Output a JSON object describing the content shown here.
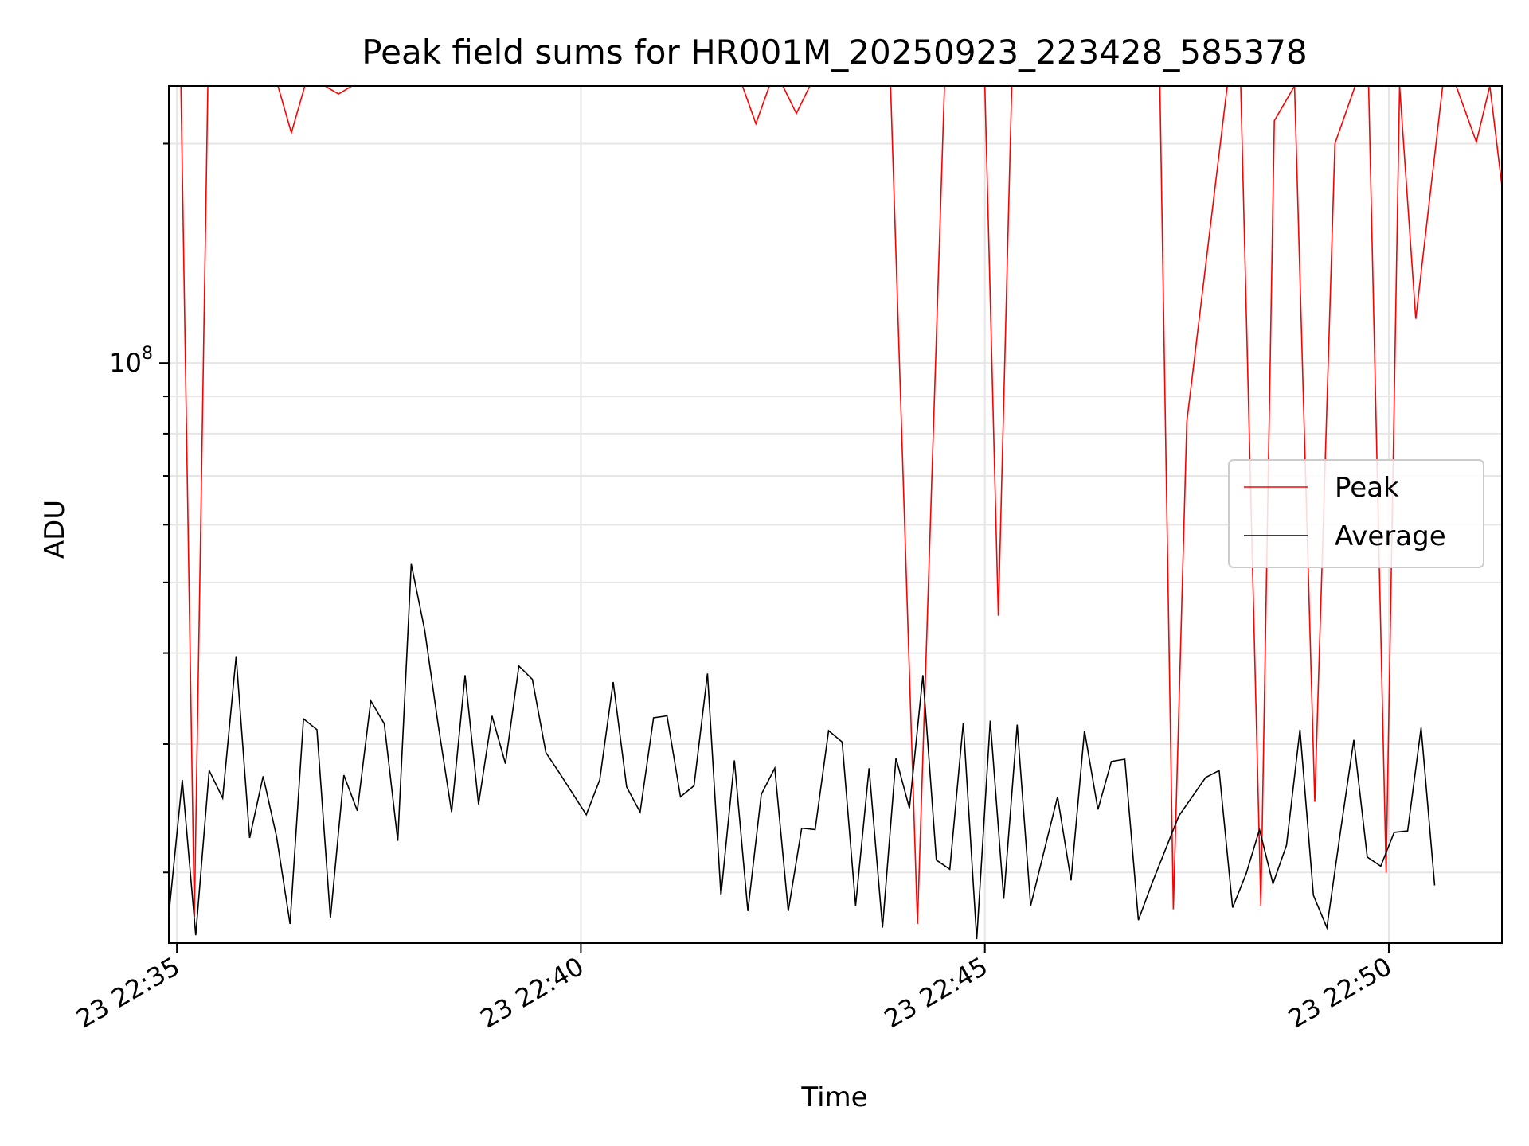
{
  "chart_data": {
    "type": "line",
    "title": "Peak field sums for HR001M_20250923_223428_585378",
    "xlabel": "Time",
    "ylabel": "ADU",
    "y_scale": "log",
    "ylim": [
      16000000,
      240000000
    ],
    "y_tick_labels": [
      {
        "value": 100000000,
        "base": "10",
        "exp": "8"
      }
    ],
    "x_range": [
      "22:34:54",
      "22:51:24"
    ],
    "x_tick_labels": [
      {
        "time": "22:35:00",
        "label": "23 22:35"
      },
      {
        "time": "22:40:00",
        "label": "23 22:40"
      },
      {
        "time": "22:45:00",
        "label": "23 22:45"
      },
      {
        "time": "22:50:00",
        "label": "23 22:50"
      }
    ],
    "grid": true,
    "legend": {
      "position": "center-right",
      "entries": [
        "Peak",
        "Average"
      ]
    },
    "series": [
      {
        "name": "Peak",
        "color": "#ff0000",
        "points": [
          [
            "22:34:54",
            240000000
          ],
          [
            "22:35:03",
            240000000
          ],
          [
            "22:35:13",
            17400000
          ],
          [
            "22:35:23",
            240000000
          ],
          [
            "22:36:15",
            240000000
          ],
          [
            "22:36:25",
            207000000
          ],
          [
            "22:36:35",
            240000000
          ],
          [
            "22:36:50",
            240000000
          ],
          [
            "22:37:00",
            234000000
          ],
          [
            "22:37:10",
            240000000
          ],
          [
            "22:42:00",
            240000000
          ],
          [
            "22:42:10",
            213000000
          ],
          [
            "22:42:20",
            240000000
          ],
          [
            "22:42:30",
            240000000
          ],
          [
            "22:42:40",
            220000000
          ],
          [
            "22:42:50",
            240000000
          ],
          [
            "22:43:50",
            240000000
          ],
          [
            "22:44:10",
            17000000
          ],
          [
            "22:44:30",
            240000000
          ],
          [
            "22:45:00",
            240000000
          ],
          [
            "22:45:10",
            45000000
          ],
          [
            "22:45:20",
            240000000
          ],
          [
            "22:47:10",
            240000000
          ],
          [
            "22:47:20",
            17800000
          ],
          [
            "22:47:30",
            83000000
          ],
          [
            "22:48:00",
            240000000
          ],
          [
            "22:48:10",
            240000000
          ],
          [
            "22:48:25",
            18000000
          ],
          [
            "22:48:35",
            215000000
          ],
          [
            "22:48:50",
            240000000
          ],
          [
            "22:49:05",
            25000000
          ],
          [
            "22:49:20",
            200000000
          ],
          [
            "22:49:35",
            240000000
          ],
          [
            "22:49:45",
            240000000
          ],
          [
            "22:49:58",
            20000000
          ],
          [
            "22:50:08",
            240000000
          ],
          [
            "22:50:20",
            115000000
          ],
          [
            "22:50:40",
            240000000
          ],
          [
            "22:50:50",
            240000000
          ],
          [
            "22:51:05",
            201000000
          ],
          [
            "22:51:15",
            240000000
          ],
          [
            "22:51:24",
            175000000
          ]
        ]
      },
      {
        "name": "Average",
        "color": "#000000",
        "points": [
          [
            "22:34:54",
            17500000
          ],
          [
            "22:35:04",
            26800000
          ],
          [
            "22:35:14",
            16400000
          ],
          [
            "22:35:24",
            27600000
          ],
          [
            "22:35:34",
            25300000
          ],
          [
            "22:35:44",
            39600000
          ],
          [
            "22:35:54",
            22300000
          ],
          [
            "22:36:04",
            27100000
          ],
          [
            "22:36:14",
            22400000
          ],
          [
            "22:36:24",
            17000000
          ],
          [
            "22:36:34",
            32500000
          ],
          [
            "22:36:44",
            31400000
          ],
          [
            "22:36:54",
            17300000
          ],
          [
            "22:37:04",
            27200000
          ],
          [
            "22:37:14",
            24300000
          ],
          [
            "22:37:24",
            34400000
          ],
          [
            "22:37:34",
            32000000
          ],
          [
            "22:37:44",
            22100000
          ],
          [
            "22:37:54",
            53000000
          ],
          [
            "22:38:04",
            43000000
          ],
          [
            "22:38:14",
            31900000
          ],
          [
            "22:38:24",
            24200000
          ],
          [
            "22:38:34",
            37300000
          ],
          [
            "22:38:44",
            24800000
          ],
          [
            "22:38:54",
            32800000
          ],
          [
            "22:39:04",
            28200000
          ],
          [
            "22:39:14",
            38400000
          ],
          [
            "22:39:24",
            36800000
          ],
          [
            "22:39:34",
            29200000
          ],
          [
            "22:39:44",
            27400000
          ],
          [
            "22:40:04",
            24000000
          ],
          [
            "22:40:14",
            26800000
          ],
          [
            "22:40:24",
            36500000
          ],
          [
            "22:40:34",
            26200000
          ],
          [
            "22:40:44",
            24200000
          ],
          [
            "22:40:54",
            32600000
          ],
          [
            "22:41:04",
            32800000
          ],
          [
            "22:41:14",
            25400000
          ],
          [
            "22:41:24",
            26300000
          ],
          [
            "22:41:34",
            37500000
          ],
          [
            "22:41:44",
            18600000
          ],
          [
            "22:41:54",
            28500000
          ],
          [
            "22:42:04",
            17700000
          ],
          [
            "22:42:14",
            25600000
          ],
          [
            "22:42:24",
            27800000
          ],
          [
            "22:42:34",
            17700000
          ],
          [
            "22:42:44",
            23000000
          ],
          [
            "22:42:54",
            22900000
          ],
          [
            "22:43:04",
            31300000
          ],
          [
            "22:43:14",
            30200000
          ],
          [
            "22:43:24",
            18000000
          ],
          [
            "22:43:34",
            27800000
          ],
          [
            "22:43:44",
            16800000
          ],
          [
            "22:43:54",
            28700000
          ],
          [
            "22:44:04",
            24500000
          ],
          [
            "22:44:14",
            37300000
          ],
          [
            "22:44:24",
            20800000
          ],
          [
            "22:44:34",
            20200000
          ],
          [
            "22:44:44",
            32100000
          ],
          [
            "22:44:54",
            16200000
          ],
          [
            "22:45:04",
            32300000
          ],
          [
            "22:45:14",
            18400000
          ],
          [
            "22:45:24",
            31900000
          ],
          [
            "22:45:34",
            18000000
          ],
          [
            "22:45:44",
            21400000
          ],
          [
            "22:45:54",
            25400000
          ],
          [
            "22:46:04",
            19500000
          ],
          [
            "22:46:14",
            31300000
          ],
          [
            "22:46:24",
            24400000
          ],
          [
            "22:46:34",
            28400000
          ],
          [
            "22:46:44",
            28600000
          ],
          [
            "22:46:54",
            17200000
          ],
          [
            "22:47:04",
            19300000
          ],
          [
            "22:47:24",
            23900000
          ],
          [
            "22:47:44",
            27000000
          ],
          [
            "22:47:54",
            27600000
          ],
          [
            "22:48:04",
            17900000
          ],
          [
            "22:48:14",
            19900000
          ],
          [
            "22:48:24",
            22900000
          ],
          [
            "22:48:34",
            19300000
          ],
          [
            "22:48:44",
            21800000
          ],
          [
            "22:48:54",
            31400000
          ],
          [
            "22:49:04",
            18600000
          ],
          [
            "22:49:14",
            16800000
          ],
          [
            "22:49:24",
            22700000
          ],
          [
            "22:49:34",
            30400000
          ],
          [
            "22:49:44",
            21000000
          ],
          [
            "22:49:54",
            20400000
          ],
          [
            "22:50:04",
            22700000
          ],
          [
            "22:50:14",
            22800000
          ],
          [
            "22:50:24",
            31600000
          ],
          [
            "22:50:34",
            19200000
          ]
        ]
      }
    ]
  }
}
